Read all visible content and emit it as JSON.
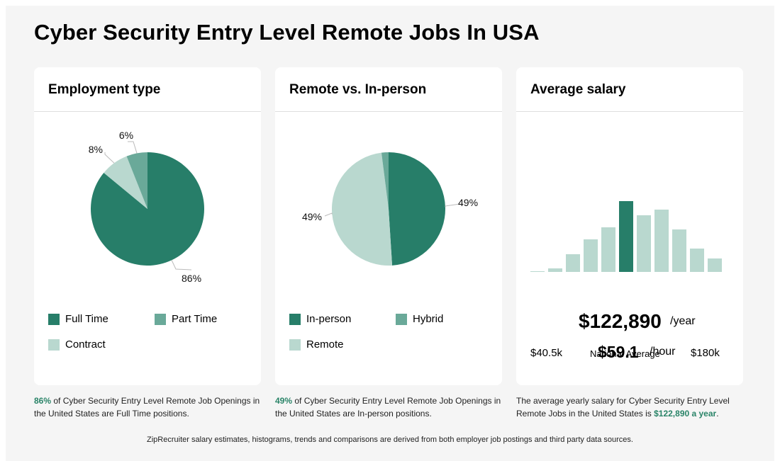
{
  "title": "Cyber Security Entry Level Remote Jobs In USA",
  "colors": {
    "dark_green": "#277e69",
    "mid_green": "#6aa999",
    "light_green": "#b9d8cf"
  },
  "chart_data": [
    {
      "type": "pie",
      "title": "Employment type",
      "slices": [
        {
          "label": "Full Time",
          "value": 86,
          "display": "86%",
          "color": "#277e69"
        },
        {
          "label": "Contract",
          "value": 8,
          "display": "8%",
          "color": "#b9d8cf"
        },
        {
          "label": "Part Time",
          "value": 6,
          "display": "6%",
          "color": "#6aa999"
        }
      ],
      "legend": [
        "Full Time",
        "Part Time",
        "Contract"
      ]
    },
    {
      "type": "pie",
      "title": "Remote vs. In-person",
      "slices": [
        {
          "label": "In-person",
          "value": 49,
          "display": "49%",
          "color": "#277e69"
        },
        {
          "label": "Remote",
          "value": 49,
          "display": "49%",
          "color": "#b9d8cf"
        },
        {
          "label": "Hybrid",
          "value": 2,
          "display": "",
          "color": "#6aa999"
        }
      ],
      "legend": [
        "In-person",
        "Hybrid",
        "Remote"
      ]
    },
    {
      "type": "bar",
      "title": "Average salary",
      "subtitle": "histogram",
      "values": [
        1,
        5,
        25,
        46,
        63,
        100,
        80,
        88,
        60,
        33,
        19
      ],
      "highlight_index": 5,
      "x_min_label": "$40.5k",
      "x_mid_label": "National Average",
      "x_max_label": "$180k",
      "yearly": "$122,890",
      "yearly_unit": "/year",
      "hourly": "$59.1",
      "hourly_unit": "/hour"
    }
  ],
  "captions": {
    "employment": {
      "bold": "86%",
      "text": " of Cyber Security Entry Level Remote Job Openings in the United States are Full Time positions."
    },
    "remote": {
      "bold": "49%",
      "text": " of Cyber Security Entry Level Remote Job Openings in the United States are In-person positions."
    },
    "salary": {
      "text": "The average yearly salary for Cyber Security Entry Level Remote Jobs in the United States is ",
      "bold": "$122,890 a year",
      "end": "."
    }
  },
  "footer": "ZipRecruiter salary estimates, histograms, trends and comparisons are derived from both employer job postings and third party data sources."
}
